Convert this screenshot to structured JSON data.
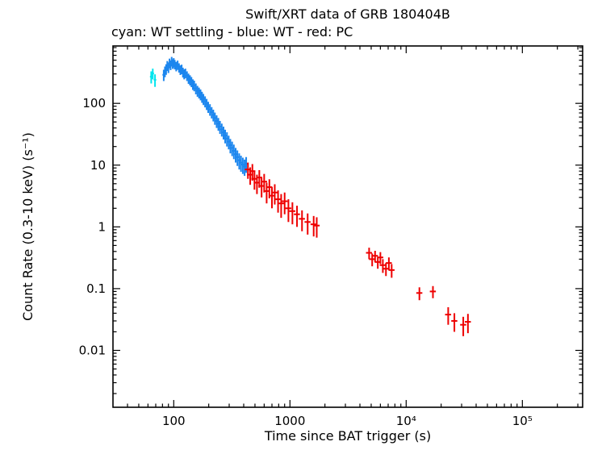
{
  "chart_data": {
    "type": "scatter",
    "title": "Swift/XRT data of GRB 180404B",
    "subtitle": "cyan: WT settling - blue: WT - red: PC",
    "xlabel": "Time since BAT trigger (s)",
    "ylabel": "Count Rate (0.3-10 keV) (s⁻¹)",
    "xscale": "log",
    "yscale": "log",
    "xlim": [
      30,
      330000
    ],
    "ylim": [
      0.0012,
      850
    ],
    "grid": false,
    "legend_position": "subtitle-line",
    "x_ticks": [
      {
        "v": 100,
        "label": "100"
      },
      {
        "v": 1000,
        "label": "1000"
      },
      {
        "v": 10000,
        "label": "10⁴"
      },
      {
        "v": 100000,
        "label": "10⁵"
      }
    ],
    "y_ticks": [
      {
        "v": 0.01,
        "label": "0.01"
      },
      {
        "v": 0.1,
        "label": "0.1"
      },
      {
        "v": 1,
        "label": "1"
      },
      {
        "v": 10,
        "label": "10"
      },
      {
        "v": 100,
        "label": "100"
      }
    ],
    "series": [
      {
        "name": "WT settling",
        "color": "#00e5ee",
        "xbin_frac": 0.025,
        "points": [
          [
            64,
            270,
            60
          ],
          [
            66,
            305,
            60
          ],
          [
            69,
            240,
            55
          ]
        ]
      },
      {
        "name": "WT",
        "color": "#1c86ee",
        "xbin_frac": 0.025,
        "points": [
          [
            82,
            290,
            60
          ],
          [
            84,
            330,
            65
          ],
          [
            86,
            360,
            70
          ],
          [
            88,
            410,
            75
          ],
          [
            90,
            380,
            70
          ],
          [
            92,
            450,
            80
          ],
          [
            94,
            420,
            75
          ],
          [
            96,
            480,
            85
          ],
          [
            98,
            440,
            78
          ],
          [
            100,
            460,
            80
          ],
          [
            102,
            430,
            75
          ],
          [
            105,
            400,
            70
          ],
          [
            108,
            420,
            72
          ],
          [
            111,
            380,
            65
          ],
          [
            114,
            350,
            62
          ],
          [
            117,
            360,
            63
          ],
          [
            120,
            320,
            58
          ],
          [
            123,
            300,
            55
          ],
          [
            126,
            310,
            55
          ],
          [
            130,
            280,
            50
          ],
          [
            134,
            255,
            48
          ],
          [
            138,
            240,
            45
          ],
          [
            142,
            225,
            42
          ],
          [
            146,
            205,
            40
          ],
          [
            150,
            195,
            38
          ],
          [
            155,
            175,
            35
          ],
          [
            160,
            160,
            32
          ],
          [
            165,
            150,
            30
          ],
          [
            170,
            140,
            28
          ],
          [
            175,
            128,
            26
          ],
          [
            180,
            118,
            24
          ],
          [
            186,
            108,
            22
          ],
          [
            192,
            98,
            20
          ],
          [
            198,
            88,
            18
          ],
          [
            205,
            80,
            17
          ],
          [
            212,
            72,
            15
          ],
          [
            219,
            65,
            14
          ],
          [
            226,
            58,
            13
          ],
          [
            234,
            52,
            12
          ],
          [
            242,
            47,
            11
          ],
          [
            250,
            42,
            10
          ],
          [
            259,
            38,
            9
          ],
          [
            268,
            34,
            8
          ],
          [
            277,
            30,
            7.5
          ],
          [
            287,
            27,
            7
          ],
          [
            297,
            24,
            6
          ],
          [
            307,
            21,
            5.5
          ],
          [
            318,
            19,
            5
          ],
          [
            329,
            17,
            4.5
          ],
          [
            341,
            15,
            4
          ],
          [
            353,
            13.5,
            3.8
          ],
          [
            366,
            12,
            3.5
          ],
          [
            379,
            11,
            3.2
          ],
          [
            393,
            10.2,
            3
          ],
          [
            407,
            9.5,
            2.8
          ],
          [
            420,
            10.5,
            3
          ]
        ]
      },
      {
        "name": "PC",
        "color": "#ee0000",
        "xbin_frac": 0.06,
        "points": [
          [
            435,
            8.5,
            2.5
          ],
          [
            455,
            7,
            2.2
          ],
          [
            475,
            8,
            2.4
          ],
          [
            495,
            6,
            2
          ],
          [
            520,
            5.2,
            1.8
          ],
          [
            545,
            6.3,
            2
          ],
          [
            570,
            4.6,
            1.6
          ],
          [
            600,
            5.4,
            1.8
          ],
          [
            630,
            3.8,
            1.4
          ],
          [
            665,
            4.4,
            1.5
          ],
          [
            700,
            3.2,
            1.2
          ],
          [
            740,
            3.6,
            1.3
          ],
          [
            790,
            2.8,
            1.1
          ],
          [
            840,
            2.4,
            1
          ],
          [
            900,
            2.6,
            1
          ],
          [
            970,
            2,
            0.8
          ],
          [
            1050,
            1.8,
            0.7
          ],
          [
            1150,
            1.6,
            0.6
          ],
          [
            1270,
            1.35,
            0.5
          ],
          [
            1420,
            1.2,
            0.45
          ],
          [
            1600,
            1.1,
            0.4
          ],
          [
            1700,
            1.05,
            0.38
          ],
          [
            4800,
            0.38,
            0.08
          ],
          [
            5100,
            0.3,
            0.07
          ],
          [
            5400,
            0.34,
            0.07
          ],
          [
            5700,
            0.27,
            0.06
          ],
          [
            6000,
            0.32,
            0.07
          ],
          [
            6300,
            0.24,
            0.06
          ],
          [
            6700,
            0.21,
            0.05
          ],
          [
            7100,
            0.26,
            0.06
          ],
          [
            7500,
            0.2,
            0.05
          ],
          [
            13000,
            0.085,
            0.02
          ],
          [
            17000,
            0.09,
            0.02
          ],
          [
            23000,
            0.038,
            0.012
          ],
          [
            26000,
            0.03,
            0.01
          ],
          [
            31000,
            0.026,
            0.009
          ],
          [
            34000,
            0.029,
            0.01
          ]
        ]
      }
    ]
  }
}
